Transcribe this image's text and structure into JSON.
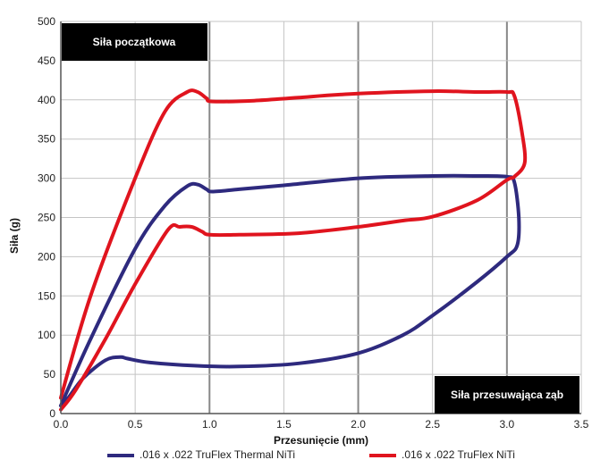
{
  "chart_data": {
    "type": "line",
    "xlabel": "Przesunięcie (mm)",
    "ylabel": "Siła (g)",
    "xlim": [
      0,
      3.5
    ],
    "ylim": [
      0,
      500
    ],
    "x_ticks": [
      "0.0",
      "0.5",
      "1.0",
      "1.5",
      "2.0",
      "2.5",
      "3.0",
      "3.5"
    ],
    "y_ticks": [
      "0",
      "50",
      "100",
      "150",
      "200",
      "250",
      "300",
      "350",
      "400",
      "450",
      "500"
    ],
    "grid": true,
    "legend_position": "bottom",
    "annotations": [
      "Siła początkowa",
      "Siła przesuwająca ząb"
    ],
    "series": [
      {
        "name": ".016 x .022 TruFlex Thermal NiTi",
        "color": "#2e2a7e",
        "points": [
          [
            0,
            10
          ],
          [
            0.2,
            95
          ],
          [
            0.5,
            210
          ],
          [
            0.7,
            265
          ],
          [
            0.85,
            290
          ],
          [
            0.92,
            292
          ],
          [
            0.98,
            286
          ],
          [
            1.02,
            283
          ],
          [
            1.2,
            286
          ],
          [
            1.5,
            291
          ],
          [
            2.0,
            300
          ],
          [
            2.5,
            303
          ],
          [
            2.8,
            303
          ],
          [
            3.0,
            302
          ],
          [
            3.05,
            295
          ],
          [
            3.08,
            250
          ],
          [
            3.07,
            215
          ],
          [
            3.0,
            200
          ],
          [
            2.8,
            168
          ],
          [
            2.5,
            125
          ],
          [
            2.3,
            100
          ],
          [
            2.0,
            77
          ],
          [
            1.6,
            64
          ],
          [
            1.2,
            60
          ],
          [
            0.9,
            61
          ],
          [
            0.6,
            65
          ],
          [
            0.45,
            70
          ],
          [
            0.4,
            72
          ],
          [
            0.3,
            68
          ],
          [
            0.15,
            45
          ],
          [
            0.05,
            20
          ],
          [
            0,
            10
          ]
        ]
      },
      {
        "name": ".016 x .022 TruFlex NiTi",
        "color": "#e0141e",
        "points": [
          [
            0,
            20
          ],
          [
            0.2,
            150
          ],
          [
            0.5,
            300
          ],
          [
            0.7,
            385
          ],
          [
            0.85,
            410
          ],
          [
            0.92,
            410
          ],
          [
            0.98,
            402
          ],
          [
            1.02,
            398
          ],
          [
            1.3,
            399
          ],
          [
            1.6,
            403
          ],
          [
            2.0,
            408
          ],
          [
            2.5,
            411
          ],
          [
            2.8,
            410
          ],
          [
            3.0,
            410
          ],
          [
            3.05,
            405
          ],
          [
            3.1,
            360
          ],
          [
            3.12,
            320
          ],
          [
            3.05,
            302
          ],
          [
            3.0,
            298
          ],
          [
            2.8,
            272
          ],
          [
            2.5,
            251
          ],
          [
            2.3,
            246
          ],
          [
            2.0,
            238
          ],
          [
            1.6,
            230
          ],
          [
            1.2,
            228
          ],
          [
            1.0,
            228
          ],
          [
            0.95,
            232
          ],
          [
            0.88,
            238
          ],
          [
            0.8,
            238
          ],
          [
            0.72,
            234
          ],
          [
            0.5,
            165
          ],
          [
            0.3,
            95
          ],
          [
            0.1,
            30
          ],
          [
            0,
            5
          ]
        ]
      }
    ]
  }
}
